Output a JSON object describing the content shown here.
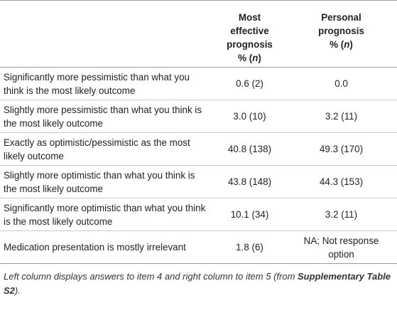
{
  "table": {
    "header": [
      {
        "line1": "Most effective",
        "line2": "prognosis",
        "unit_prefix": "% (",
        "unit_var": "n",
        "unit_suffix": ")"
      },
      {
        "line1": "Personal",
        "line2": "prognosis",
        "unit_prefix": "% (",
        "unit_var": "n",
        "unit_suffix": ")"
      }
    ],
    "rows": [
      [
        "Significantly more pessimistic than what you think is the most likely outcome",
        "0.6 (2)",
        "0.0"
      ],
      [
        "Slightly more pessimistic than what you think is the most likely outcome",
        "3.0 (10)",
        "3.2 (11)"
      ],
      [
        "Exactly as optimistic/pessimistic as the most likely outcome",
        "40.8 (138)",
        "49.3 (170)"
      ],
      [
        "Slightly more optimistic than what you think is the most likely outcome",
        "43.8 (148)",
        "44.3 (153)"
      ],
      [
        "Significantly more optimistic than what you think is the most likely outcome",
        "10.1 (34)",
        "3.2 (11)"
      ],
      [
        "Medication presentation is mostly irrelevant",
        "1.8 (6)",
        "NA; Not response option"
      ]
    ]
  },
  "footnote": {
    "text": "Left column displays answers to item 4 and right column to item 5 (from ",
    "reference": "Supplementary Table S2",
    "end": ")."
  }
}
